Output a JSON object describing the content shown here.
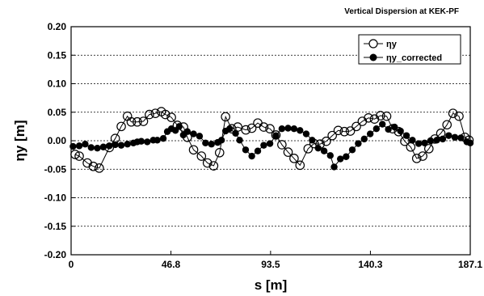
{
  "chart_data": {
    "type": "line",
    "title": "Vertical Dispersion at KEK-PF",
    "xlabel": "s [m]",
    "ylabel": "ηy [m]",
    "xlim": [
      0,
      187.1
    ],
    "ylim": [
      -0.2,
      0.2
    ],
    "x_ticks": [
      {
        "value": 0,
        "label": "0"
      },
      {
        "value": 46.8,
        "label": "46.8"
      },
      {
        "value": 93.5,
        "label": "93.5"
      },
      {
        "value": 140.3,
        "label": "140.3"
      },
      {
        "value": 187.1,
        "label": "187.1"
      }
    ],
    "y_ticks": [
      {
        "value": 0.2,
        "label": "0.20"
      },
      {
        "value": 0.15,
        "label": "0.15"
      },
      {
        "value": 0.1,
        "label": "0.10"
      },
      {
        "value": 0.05,
        "label": "0.05"
      },
      {
        "value": 0.0,
        "label": "0.00"
      },
      {
        "value": -0.05,
        "label": "-0.05"
      },
      {
        "value": -0.1,
        "label": "-0.10"
      },
      {
        "value": -0.15,
        "label": "-0.15"
      },
      {
        "value": -0.2,
        "label": "-0.20"
      }
    ],
    "grid": "horizontal dashed",
    "legend_position": "top-right",
    "series": [
      {
        "name": "ηy",
        "marker": "open-circle",
        "color": "#000000",
        "points": [
          [
            1.9,
            -0.024
          ],
          [
            3.8,
            -0.027
          ],
          [
            7.6,
            -0.039
          ],
          [
            10.4,
            -0.045
          ],
          [
            13.2,
            -0.048
          ],
          [
            17.9,
            -0.012
          ],
          [
            20.7,
            0.004
          ],
          [
            23.5,
            0.025
          ],
          [
            26.4,
            0.043
          ],
          [
            28.2,
            0.033
          ],
          [
            31.0,
            0.033
          ],
          [
            33.9,
            0.034
          ],
          [
            36.7,
            0.046
          ],
          [
            39.5,
            0.048
          ],
          [
            42.3,
            0.051
          ],
          [
            44.2,
            0.046
          ],
          [
            47.0,
            0.041
          ],
          [
            49.8,
            0.027
          ],
          [
            52.7,
            0.024
          ],
          [
            54.5,
            0.006
          ],
          [
            57.4,
            -0.016
          ],
          [
            61.1,
            -0.027
          ],
          [
            63.9,
            -0.039
          ],
          [
            66.8,
            -0.044
          ],
          [
            69.6,
            -0.021
          ],
          [
            72.4,
            0.042
          ],
          [
            75.3,
            0.021
          ],
          [
            78.1,
            0.024
          ],
          [
            81.9,
            0.019
          ],
          [
            84.7,
            0.022
          ],
          [
            87.5,
            0.031
          ],
          [
            90.3,
            0.024
          ],
          [
            93.2,
            0.021
          ],
          [
            96.0,
            0.01
          ],
          [
            98.8,
            -0.007
          ],
          [
            101.7,
            -0.02
          ],
          [
            104.5,
            -0.031
          ],
          [
            107.3,
            -0.043
          ],
          [
            111.1,
            -0.014
          ],
          [
            113.9,
            -0.005
          ],
          [
            116.7,
            -0.006
          ],
          [
            119.6,
            -0.001
          ],
          [
            122.4,
            0.009
          ],
          [
            125.2,
            0.018
          ],
          [
            128.1,
            0.016
          ],
          [
            130.9,
            0.017
          ],
          [
            133.7,
            0.025
          ],
          [
            136.5,
            0.034
          ],
          [
            139.4,
            0.04
          ],
          [
            142.2,
            0.038
          ],
          [
            145.0,
            0.044
          ],
          [
            147.9,
            0.043
          ],
          [
            150.7,
            0.021
          ],
          [
            153.5,
            0.016
          ],
          [
            156.4,
            -0.001
          ],
          [
            159.2,
            -0.011
          ],
          [
            162.0,
            -0.031
          ],
          [
            164.8,
            -0.027
          ],
          [
            167.7,
            -0.014
          ],
          [
            170.5,
            0.003
          ],
          [
            173.3,
            0.013
          ],
          [
            176.2,
            0.028
          ],
          [
            179.0,
            0.048
          ],
          [
            181.8,
            0.043
          ],
          [
            184.6,
            0.006
          ],
          [
            186.5,
            0.001
          ]
        ]
      },
      {
        "name": "ηy_corrected",
        "marker": "filled-circle",
        "color": "#000000",
        "points": [
          [
            0.9,
            -0.01
          ],
          [
            3.8,
            -0.009
          ],
          [
            6.6,
            -0.006
          ],
          [
            9.4,
            -0.012
          ],
          [
            12.3,
            -0.013
          ],
          [
            15.1,
            -0.011
          ],
          [
            17.9,
            -0.009
          ],
          [
            20.7,
            -0.007
          ],
          [
            23.5,
            -0.008
          ],
          [
            26.4,
            -0.006
          ],
          [
            29.2,
            -0.004
          ],
          [
            31.0,
            -0.002
          ],
          [
            32.9,
            -0.001
          ],
          [
            35.7,
            -0.002
          ],
          [
            38.5,
            0.001
          ],
          [
            40.4,
            0.001
          ],
          [
            43.2,
            0.004
          ],
          [
            45.1,
            0.016
          ],
          [
            47.0,
            0.021
          ],
          [
            48.9,
            0.018
          ],
          [
            50.7,
            0.025
          ],
          [
            52.6,
            0.01
          ],
          [
            54.5,
            0.016
          ],
          [
            57.4,
            0.012
          ],
          [
            60.2,
            0.008
          ],
          [
            63.0,
            -0.004
          ],
          [
            65.8,
            -0.006
          ],
          [
            68.7,
            -0.003
          ],
          [
            70.5,
            0.001
          ],
          [
            72.4,
            0.017
          ],
          [
            74.3,
            0.021
          ],
          [
            77.1,
            0.013
          ],
          [
            79.0,
            0.001
          ],
          [
            81.8,
            -0.016
          ],
          [
            84.7,
            -0.027
          ],
          [
            87.5,
            -0.018
          ],
          [
            90.3,
            -0.008
          ],
          [
            93.2,
            -0.005
          ],
          [
            96.0,
            0.009
          ],
          [
            98.8,
            0.021
          ],
          [
            101.7,
            0.022
          ],
          [
            104.5,
            0.021
          ],
          [
            107.3,
            0.018
          ],
          [
            110.2,
            0.012
          ],
          [
            113.0,
            0.001
          ],
          [
            115.8,
            -0.013
          ],
          [
            118.6,
            -0.018
          ],
          [
            121.5,
            -0.026
          ],
          [
            123.3,
            -0.046
          ],
          [
            126.2,
            -0.032
          ],
          [
            128.9,
            -0.028
          ],
          [
            131.8,
            -0.016
          ],
          [
            134.6,
            -0.005
          ],
          [
            137.4,
            0.003
          ],
          [
            140.2,
            0.012
          ],
          [
            143.1,
            0.021
          ],
          [
            145.9,
            0.029
          ],
          [
            148.7,
            0.02
          ],
          [
            151.6,
            0.024
          ],
          [
            154.4,
            0.017
          ],
          [
            157.2,
            0.009
          ],
          [
            160.0,
            0.001
          ],
          [
            162.9,
            -0.005
          ],
          [
            165.7,
            -0.004
          ],
          [
            168.5,
            0.0
          ],
          [
            171.4,
            0.001
          ],
          [
            174.2,
            0.003
          ],
          [
            177.0,
            0.009
          ],
          [
            179.9,
            0.006
          ],
          [
            182.7,
            0.005
          ],
          [
            185.5,
            -0.002
          ],
          [
            187.1,
            -0.004
          ]
        ]
      }
    ]
  }
}
